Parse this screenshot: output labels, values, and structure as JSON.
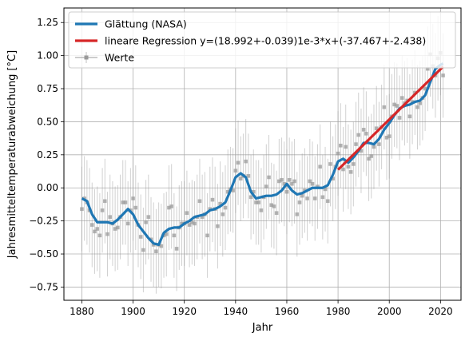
{
  "chart_data": {
    "type": "line",
    "title": "",
    "xlabel": "Jahr",
    "ylabel": "Jahresmitteltemperaturabweichung [°C]",
    "xlim": [
      1873,
      2028
    ],
    "ylim": [
      -0.85,
      1.36
    ],
    "xticks": [
      1880,
      1900,
      1920,
      1940,
      1960,
      1980,
      2000,
      2020
    ],
    "yticks": [
      -0.75,
      -0.5,
      -0.25,
      0.0,
      0.25,
      0.5,
      0.75,
      1.0,
      1.25
    ],
    "xtick_labels": [
      "1880",
      "1900",
      "1920",
      "1940",
      "1960",
      "1980",
      "2000",
      "2020"
    ],
    "ytick_labels": [
      "−0.75",
      "−0.50",
      "−0.25",
      "0.00",
      "0.25",
      "0.50",
      "0.75",
      "1.00",
      "1.25"
    ],
    "grid": true,
    "legend_position": "top-left",
    "series": [
      {
        "name": "Glättung (NASA)",
        "kind": "line",
        "color": "#1f77b4",
        "x": [
          1880,
          1882,
          1884,
          1886,
          1888,
          1890,
          1892,
          1894,
          1896,
          1898,
          1900,
          1902,
          1904,
          1906,
          1908,
          1910,
          1912,
          1914,
          1916,
          1918,
          1920,
          1922,
          1924,
          1926,
          1928,
          1930,
          1932,
          1934,
          1936,
          1938,
          1940,
          1942,
          1944,
          1946,
          1948,
          1950,
          1952,
          1954,
          1956,
          1958,
          1960,
          1962,
          1964,
          1966,
          1968,
          1970,
          1972,
          1974,
          1976,
          1978,
          1980,
          1982,
          1984,
          1986,
          1988,
          1990,
          1992,
          1994,
          1996,
          1998,
          2000,
          2002,
          2004,
          2006,
          2008,
          2010,
          2012,
          2014,
          2016,
          2018,
          2020,
          2021
        ],
        "y": [
          -0.08,
          -0.1,
          -0.2,
          -0.26,
          -0.26,
          -0.26,
          -0.27,
          -0.24,
          -0.2,
          -0.16,
          -0.2,
          -0.28,
          -0.33,
          -0.38,
          -0.42,
          -0.43,
          -0.34,
          -0.31,
          -0.3,
          -0.3,
          -0.27,
          -0.25,
          -0.22,
          -0.21,
          -0.2,
          -0.17,
          -0.16,
          -0.14,
          -0.11,
          -0.02,
          0.08,
          0.11,
          0.08,
          -0.03,
          -0.08,
          -0.07,
          -0.06,
          -0.06,
          -0.05,
          -0.02,
          0.03,
          -0.02,
          -0.05,
          -0.04,
          -0.02,
          0.0,
          0.0,
          0.0,
          0.02,
          0.1,
          0.2,
          0.22,
          0.19,
          0.23,
          0.28,
          0.34,
          0.34,
          0.33,
          0.37,
          0.44,
          0.49,
          0.55,
          0.6,
          0.62,
          0.63,
          0.65,
          0.66,
          0.7,
          0.8,
          0.9,
          0.93,
          0.94
        ]
      },
      {
        "name": "lineare Regression y=(18.992+-0.039)1e-3*x+(-37.467+-2.438)",
        "kind": "line",
        "color": "#d62728",
        "x": [
          1980,
          2021
        ],
        "y": [
          0.137,
          0.916
        ]
      },
      {
        "name": "Werte",
        "kind": "errorbar",
        "color": "#999999",
        "x": [
          1880,
          1881,
          1882,
          1883,
          1884,
          1885,
          1886,
          1887,
          1888,
          1889,
          1890,
          1891,
          1892,
          1893,
          1894,
          1895,
          1896,
          1897,
          1898,
          1899,
          1900,
          1901,
          1902,
          1903,
          1904,
          1905,
          1906,
          1907,
          1908,
          1909,
          1910,
          1911,
          1912,
          1913,
          1914,
          1915,
          1916,
          1917,
          1918,
          1919,
          1920,
          1921,
          1922,
          1923,
          1924,
          1925,
          1926,
          1927,
          1928,
          1929,
          1930,
          1931,
          1932,
          1933,
          1934,
          1935,
          1936,
          1937,
          1938,
          1939,
          1940,
          1941,
          1942,
          1943,
          1944,
          1945,
          1946,
          1947,
          1948,
          1949,
          1950,
          1951,
          1952,
          1953,
          1954,
          1955,
          1956,
          1957,
          1958,
          1959,
          1960,
          1961,
          1962,
          1963,
          1964,
          1965,
          1966,
          1967,
          1968,
          1969,
          1970,
          1971,
          1972,
          1973,
          1974,
          1975,
          1976,
          1977,
          1978,
          1979,
          1980,
          1981,
          1982,
          1983,
          1984,
          1985,
          1986,
          1987,
          1988,
          1989,
          1990,
          1991,
          1992,
          1993,
          1994,
          1995,
          1996,
          1997,
          1998,
          1999,
          2000,
          2001,
          2002,
          2003,
          2004,
          2005,
          2006,
          2007,
          2008,
          2009,
          2010,
          2011,
          2012,
          2013,
          2014,
          2015,
          2016,
          2017,
          2018,
          2019,
          2020,
          2021
        ],
        "y": [
          -0.16,
          -0.08,
          -0.11,
          -0.17,
          -0.28,
          -0.33,
          -0.31,
          -0.36,
          -0.17,
          -0.1,
          -0.35,
          -0.22,
          -0.27,
          -0.31,
          -0.3,
          -0.22,
          -0.11,
          -0.11,
          -0.27,
          -0.17,
          -0.08,
          -0.15,
          -0.28,
          -0.37,
          -0.47,
          -0.26,
          -0.22,
          -0.39,
          -0.43,
          -0.48,
          -0.43,
          -0.44,
          -0.36,
          -0.35,
          -0.15,
          -0.14,
          -0.36,
          -0.46,
          -0.3,
          -0.27,
          -0.27,
          -0.19,
          -0.28,
          -0.26,
          -0.27,
          -0.22,
          -0.1,
          -0.22,
          -0.2,
          -0.36,
          -0.16,
          -0.09,
          -0.16,
          -0.29,
          -0.12,
          -0.2,
          -0.15,
          -0.03,
          -0.01,
          -0.02,
          0.13,
          0.19,
          0.07,
          0.09,
          0.2,
          0.09,
          -0.07,
          -0.03,
          -0.11,
          -0.11,
          -0.17,
          -0.07,
          0.01,
          0.08,
          -0.13,
          -0.14,
          -0.19,
          0.05,
          0.06,
          0.03,
          -0.03,
          0.06,
          0.03,
          0.05,
          -0.2,
          -0.11,
          -0.06,
          -0.02,
          -0.08,
          0.05,
          0.03,
          -0.08,
          0.01,
          0.16,
          -0.07,
          -0.01,
          -0.1,
          0.18,
          0.07,
          0.16,
          0.26,
          0.32,
          0.14,
          0.31,
          0.16,
          0.12,
          0.18,
          0.33,
          0.4,
          0.28,
          0.44,
          0.41,
          0.22,
          0.24,
          0.31,
          0.45,
          0.33,
          0.46,
          0.61,
          0.38,
          0.39,
          0.54,
          0.63,
          0.62,
          0.53,
          0.68,
          0.64,
          0.66,
          0.54,
          0.65,
          0.72,
          0.61,
          0.64,
          0.68,
          0.75,
          0.9,
          1.01,
          0.92,
          0.85,
          0.98,
          1.02,
          0.85
        ],
        "yerr": 0.32
      }
    ]
  }
}
